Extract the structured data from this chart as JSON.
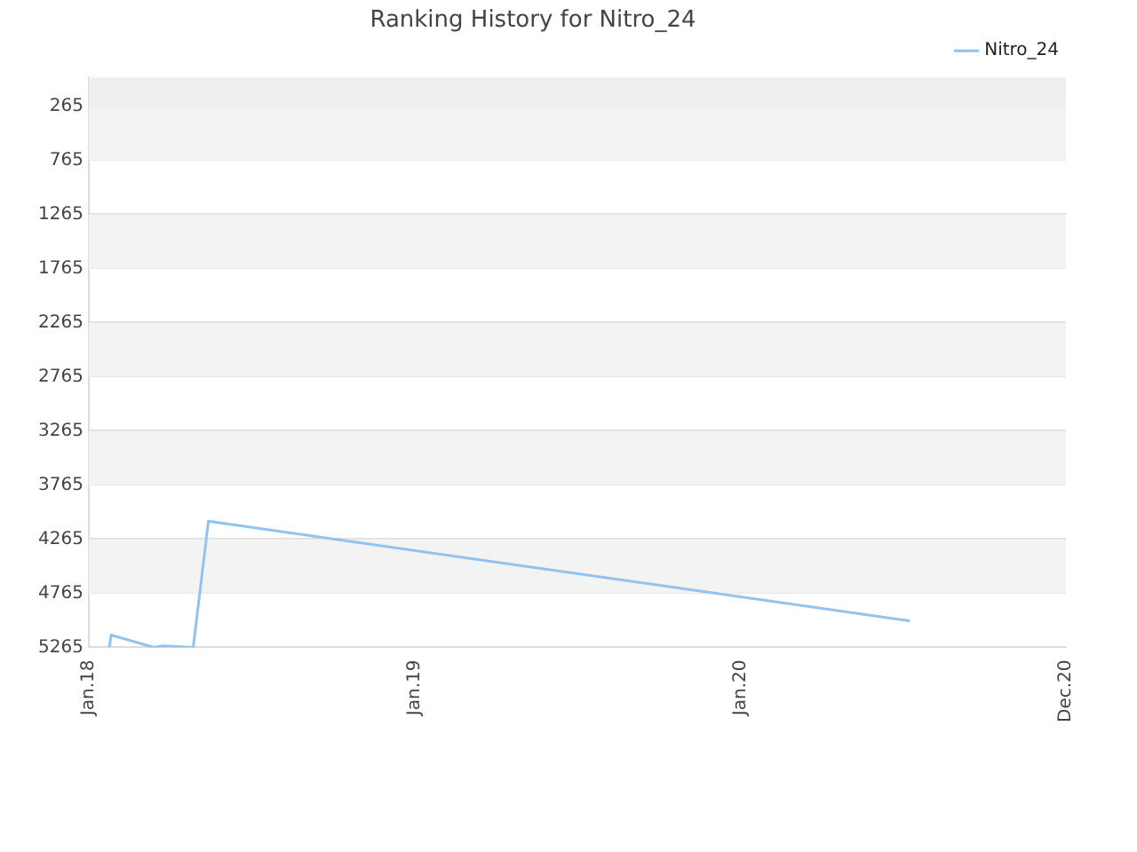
{
  "chart_data": {
    "type": "line",
    "title": "Ranking History for Nitro_24",
    "x": [
      "2018-01-24",
      "2018-01-26",
      "2018-03-15",
      "2018-03-25",
      "2018-04-28",
      "2018-05-15",
      "2020-07-09"
    ],
    "series": [
      {
        "name": "Nitro_24",
        "color": "#90c3f0",
        "values": [
          5265,
          5150,
          5265,
          5250,
          5265,
          4100,
          5020
        ]
      }
    ],
    "bands": [
      {
        "axis": "y",
        "from": 1,
        "to": 265,
        "color": "#eeeeee"
      }
    ],
    "ylim": [
      5265,
      1
    ],
    "yticks": [
      265,
      765,
      1265,
      1765,
      2265,
      2765,
      3265,
      3765,
      4265,
      4765,
      5265
    ],
    "xlim": [
      "2018-01-01",
      "2020-12-31"
    ],
    "xticks": [
      {
        "value": "2018-01-01",
        "label": "Jan.18"
      },
      {
        "value": "2019-01-01",
        "label": "Jan.19"
      },
      {
        "value": "2020-01-01",
        "label": "Jan.20"
      },
      {
        "value": "2020-12-31",
        "label": "Dec.20"
      }
    ],
    "grid": "y",
    "legend": "top right",
    "marker": "none",
    "line_style": "solid"
  }
}
